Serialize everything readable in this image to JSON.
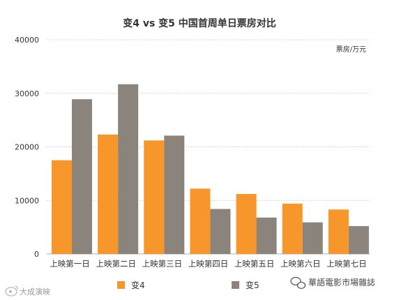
{
  "chart_data": {
    "type": "bar",
    "title": "变4 vs 变5 中国首周单日票房对比",
    "unit_label": "票房/万元",
    "categories": [
      "上映第一日",
      "上映第二日",
      "上映第三日",
      "上映第四日",
      "上映第五日",
      "上映第六日",
      "上映第七日"
    ],
    "series": [
      {
        "name": "变4",
        "color": "#F7962B",
        "values": [
          17500,
          22300,
          21200,
          12200,
          11200,
          9400,
          8300
        ]
      },
      {
        "name": "变5",
        "color": "#8A847C",
        "values": [
          28900,
          31700,
          22100,
          8400,
          6800,
          5900,
          5200
        ]
      }
    ],
    "ylim": [
      0,
      40000
    ],
    "yticks": [
      0,
      10000,
      20000,
      30000,
      40000
    ],
    "grid": true,
    "legend_position": "bottom"
  },
  "watermarks": {
    "left": "大成演映",
    "right": "華語電影市場雜誌"
  }
}
